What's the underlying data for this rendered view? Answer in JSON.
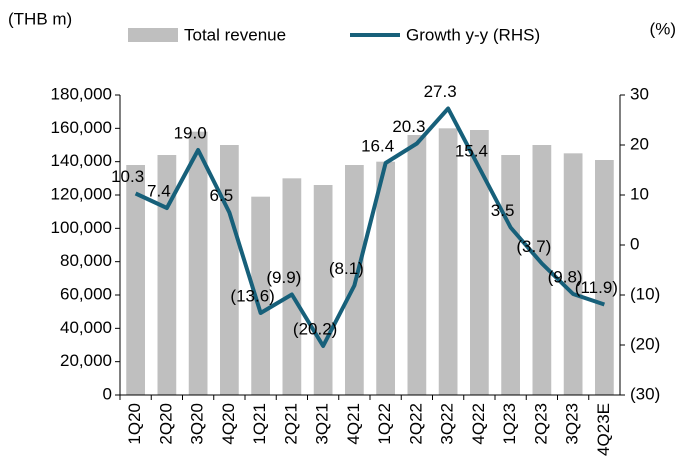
{
  "chart_data": {
    "type": "combo",
    "left_unit": "(THB m)",
    "right_unit": "(%)",
    "categories": [
      "1Q20",
      "2Q20",
      "3Q20",
      "4Q20",
      "1Q21",
      "2Q21",
      "3Q21",
      "4Q21",
      "1Q22",
      "2Q22",
      "3Q22",
      "4Q22",
      "1Q23",
      "2Q23",
      "3Q23",
      "4Q23E"
    ],
    "series": [
      {
        "name": "Total revenue",
        "type": "bar",
        "color": "#bfbfbf",
        "values": [
          138000,
          144000,
          158000,
          150000,
          119000,
          130000,
          126000,
          138000,
          140000,
          156000,
          160000,
          159000,
          144000,
          150000,
          145000,
          141000
        ]
      },
      {
        "name": "Growth y-y (RHS)",
        "type": "line",
        "axis": "y2",
        "color": "#17607a",
        "values": [
          10.3,
          7.4,
          19.0,
          6.5,
          -13.6,
          -9.9,
          -20.2,
          -8.1,
          16.4,
          20.3,
          27.3,
          15.4,
          3.5,
          -3.7,
          -9.8,
          -11.9
        ],
        "value_labels": [
          "10.3",
          "7.4",
          "19.0",
          "6.5",
          "(13.6)",
          "(9.9)",
          "(20.2)",
          "(8.1)",
          "16.4",
          "20.3",
          "27.3",
          "15.4",
          "3.5",
          "(3.7)",
          "(9.8)",
          "(11.9)"
        ]
      }
    ],
    "ylim": [
      0,
      180000
    ],
    "yticks": [
      0,
      {
        "value": 20000,
        "label": "20,000"
      },
      {
        "value": 40000,
        "label": "40,000"
      },
      {
        "value": 60000,
        "label": "60,000"
      },
      {
        "value": 80000,
        "label": "80,000"
      },
      {
        "value": 100000,
        "label": "100,000"
      },
      {
        "value": 120000,
        "label": "120,000"
      },
      {
        "value": 140000,
        "label": "140,000"
      },
      {
        "value": 160000,
        "label": "160,000"
      },
      {
        "value": 180000,
        "label": "180,000"
      }
    ],
    "y2lim": [
      -30,
      30
    ],
    "y2ticks": [
      {
        "value": -30,
        "label": "(30)"
      },
      {
        "value": -20,
        "label": "(20)"
      },
      {
        "value": -10,
        "label": "(10)"
      },
      0,
      10,
      20,
      30
    ]
  }
}
